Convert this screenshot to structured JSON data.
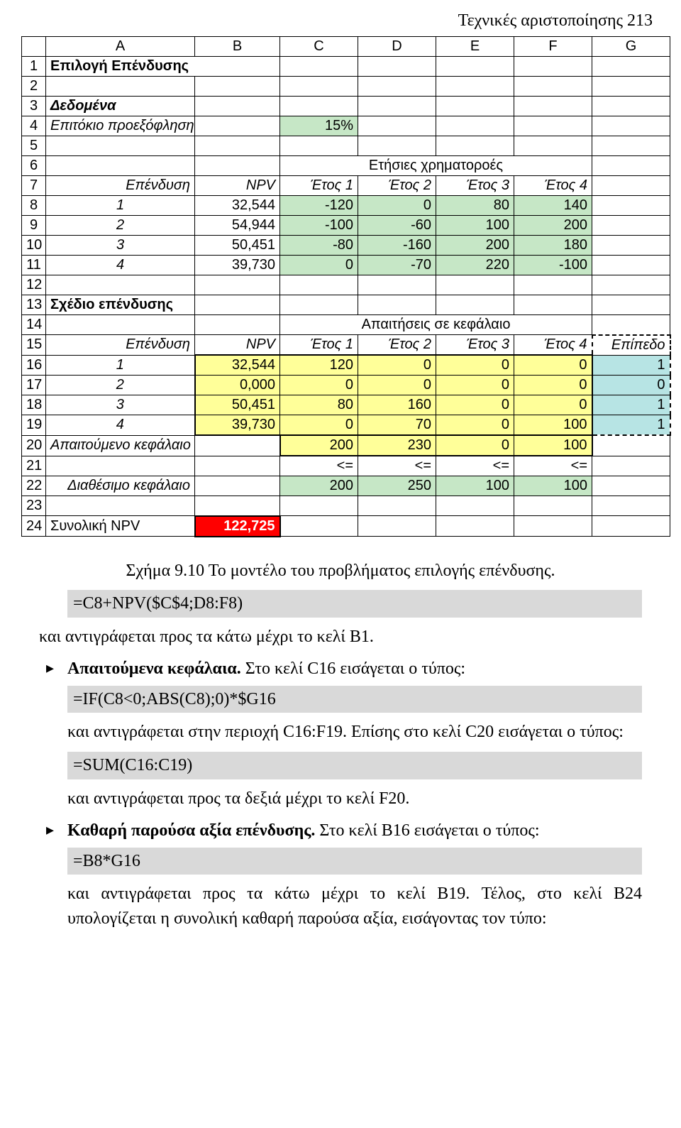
{
  "header": {
    "title": "Τεχνικές αριστοποίησης    213"
  },
  "sheet": {
    "columns": [
      "A",
      "B",
      "C",
      "D",
      "E",
      "F",
      "G"
    ],
    "rows": [
      {
        "n": "1",
        "cells": [
          {
            "t": "Επιλογή Επένδυσης",
            "cls": "bold left",
            "span": 2
          },
          null,
          {
            "t": ""
          },
          {
            "t": ""
          },
          {
            "t": ""
          },
          {
            "t": ""
          },
          {
            "t": ""
          }
        ]
      },
      {
        "n": "2",
        "cells": [
          {
            "t": ""
          },
          {
            "t": ""
          },
          {
            "t": ""
          },
          {
            "t": ""
          },
          {
            "t": ""
          },
          {
            "t": ""
          },
          {
            "t": ""
          }
        ]
      },
      {
        "n": "3",
        "cells": [
          {
            "t": "Δεδομένα",
            "cls": "bold italic left"
          },
          {
            "t": ""
          },
          {
            "t": ""
          },
          {
            "t": ""
          },
          {
            "t": ""
          },
          {
            "t": ""
          },
          {
            "t": ""
          }
        ]
      },
      {
        "n": "4",
        "cells": [
          {
            "t": "Επιτόκιο προεξόφλησης",
            "cls": "italic right"
          },
          {
            "t": ""
          },
          {
            "t": "15%",
            "cls": "right fill-green"
          },
          {
            "t": ""
          },
          {
            "t": ""
          },
          {
            "t": ""
          },
          {
            "t": ""
          }
        ]
      },
      {
        "n": "5",
        "cells": [
          {
            "t": ""
          },
          {
            "t": ""
          },
          {
            "t": ""
          },
          {
            "t": ""
          },
          {
            "t": ""
          },
          {
            "t": ""
          },
          {
            "t": ""
          }
        ]
      },
      {
        "n": "6",
        "cells": [
          {
            "t": ""
          },
          {
            "t": ""
          },
          {
            "t": "Ετήσιες χρηματοροές",
            "cls": "center",
            "span": 4
          },
          null,
          null,
          null,
          {
            "t": ""
          }
        ]
      },
      {
        "n": "7",
        "cells": [
          {
            "t": "Επένδυση",
            "cls": "italic right"
          },
          {
            "t": "NPV",
            "cls": "italic right"
          },
          {
            "t": "Έτος 1",
            "cls": "italic right"
          },
          {
            "t": "Έτος 2",
            "cls": "italic right"
          },
          {
            "t": "Έτος 3",
            "cls": "italic right"
          },
          {
            "t": "Έτος 4",
            "cls": "italic right"
          },
          {
            "t": ""
          }
        ]
      },
      {
        "n": "8",
        "cells": [
          {
            "t": "1",
            "cls": "italic center"
          },
          {
            "t": "32,544",
            "cls": "right"
          },
          {
            "t": "-120",
            "cls": "right fill-green"
          },
          {
            "t": "0",
            "cls": "right fill-green"
          },
          {
            "t": "80",
            "cls": "right fill-green"
          },
          {
            "t": "140",
            "cls": "right fill-green"
          },
          {
            "t": ""
          }
        ]
      },
      {
        "n": "9",
        "cells": [
          {
            "t": "2",
            "cls": "italic center"
          },
          {
            "t": "54,944",
            "cls": "right"
          },
          {
            "t": "-100",
            "cls": "right fill-green"
          },
          {
            "t": "-60",
            "cls": "right fill-green"
          },
          {
            "t": "100",
            "cls": "right fill-green"
          },
          {
            "t": "200",
            "cls": "right fill-green"
          },
          {
            "t": ""
          }
        ]
      },
      {
        "n": "10",
        "cells": [
          {
            "t": "3",
            "cls": "italic center"
          },
          {
            "t": "50,451",
            "cls": "right"
          },
          {
            "t": "-80",
            "cls": "right fill-green"
          },
          {
            "t": "-160",
            "cls": "right fill-green"
          },
          {
            "t": "200",
            "cls": "right fill-green"
          },
          {
            "t": "180",
            "cls": "right fill-green"
          },
          {
            "t": ""
          }
        ]
      },
      {
        "n": "11",
        "cells": [
          {
            "t": "4",
            "cls": "italic center"
          },
          {
            "t": "39,730",
            "cls": "right"
          },
          {
            "t": "0",
            "cls": "right fill-green"
          },
          {
            "t": "-70",
            "cls": "right fill-green"
          },
          {
            "t": "220",
            "cls": "right fill-green"
          },
          {
            "t": "-100",
            "cls": "right fill-green"
          },
          {
            "t": ""
          }
        ]
      },
      {
        "n": "12",
        "cells": [
          {
            "t": ""
          },
          {
            "t": ""
          },
          {
            "t": ""
          },
          {
            "t": ""
          },
          {
            "t": ""
          },
          {
            "t": ""
          },
          {
            "t": ""
          }
        ]
      },
      {
        "n": "13",
        "cells": [
          {
            "t": "Σχέδιο επένδυσης",
            "cls": "bold left"
          },
          {
            "t": ""
          },
          {
            "t": ""
          },
          {
            "t": ""
          },
          {
            "t": ""
          },
          {
            "t": ""
          },
          {
            "t": ""
          }
        ]
      },
      {
        "n": "14",
        "cells": [
          {
            "t": ""
          },
          {
            "t": ""
          },
          {
            "t": "Απαιτήσεις σε κεφάλαιο",
            "cls": "center",
            "span": 4
          },
          null,
          null,
          null,
          {
            "t": ""
          }
        ]
      },
      {
        "n": "15",
        "cells": [
          {
            "t": "Επένδυση",
            "cls": "italic right"
          },
          {
            "t": "NPV",
            "cls": "italic right"
          },
          {
            "t": "Έτος 1",
            "cls": "italic right"
          },
          {
            "t": "Έτος 2",
            "cls": "italic right"
          },
          {
            "t": "Έτος 3",
            "cls": "italic right"
          },
          {
            "t": "Έτος 4",
            "cls": "italic right"
          },
          {
            "t": "Επίπεδο",
            "cls": "italic right dash-left dash-top dash-right"
          }
        ]
      },
      {
        "n": "16",
        "cells": [
          {
            "t": "1",
            "cls": "italic center"
          },
          {
            "t": "32,544",
            "cls": "right fill-yellow thick-top thick-left"
          },
          {
            "t": "120",
            "cls": "right fill-yellow thick-top"
          },
          {
            "t": "0",
            "cls": "right fill-yellow thick-top"
          },
          {
            "t": "0",
            "cls": "right fill-yellow thick-top"
          },
          {
            "t": "0",
            "cls": "right fill-yellow thick-top thick-right"
          },
          {
            "t": "1",
            "cls": "right fill-cyan dash-left dash-right"
          }
        ]
      },
      {
        "n": "17",
        "cells": [
          {
            "t": "2",
            "cls": "italic center"
          },
          {
            "t": "0,000",
            "cls": "right fill-yellow thick-left"
          },
          {
            "t": "0",
            "cls": "right fill-yellow"
          },
          {
            "t": "0",
            "cls": "right fill-yellow"
          },
          {
            "t": "0",
            "cls": "right fill-yellow"
          },
          {
            "t": "0",
            "cls": "right fill-yellow thick-right"
          },
          {
            "t": "0",
            "cls": "right fill-cyan dash-left dash-right"
          }
        ]
      },
      {
        "n": "18",
        "cells": [
          {
            "t": "3",
            "cls": "italic center"
          },
          {
            "t": "50,451",
            "cls": "right fill-yellow thick-left"
          },
          {
            "t": "80",
            "cls": "right fill-yellow"
          },
          {
            "t": "160",
            "cls": "right fill-yellow"
          },
          {
            "t": "0",
            "cls": "right fill-yellow"
          },
          {
            "t": "0",
            "cls": "right fill-yellow thick-right"
          },
          {
            "t": "1",
            "cls": "right fill-cyan dash-left dash-right"
          }
        ]
      },
      {
        "n": "19",
        "cells": [
          {
            "t": "4",
            "cls": "italic center"
          },
          {
            "t": "39,730",
            "cls": "right fill-yellow thick-left thick-bottom"
          },
          {
            "t": "0",
            "cls": "right fill-yellow thick-bottom"
          },
          {
            "t": "70",
            "cls": "right fill-yellow thick-bottom"
          },
          {
            "t": "0",
            "cls": "right fill-yellow thick-bottom"
          },
          {
            "t": "100",
            "cls": "right fill-yellow thick-bottom thick-right"
          },
          {
            "t": "1",
            "cls": "right fill-cyan dash-left dash-right dash-bottom"
          }
        ]
      },
      {
        "n": "20",
        "cells": [
          {
            "t": "Απαιτούμενο κεφάλαιο",
            "cls": "italic right"
          },
          {
            "t": ""
          },
          {
            "t": "200",
            "cls": "right fill-yellow thick-left thick-top thick-bottom"
          },
          {
            "t": "230",
            "cls": "right fill-yellow thick-top thick-bottom"
          },
          {
            "t": "0",
            "cls": "right fill-yellow thick-top thick-bottom"
          },
          {
            "t": "100",
            "cls": "right fill-yellow thick-top thick-bottom thick-right"
          },
          {
            "t": ""
          }
        ]
      },
      {
        "n": "21",
        "cells": [
          {
            "t": ""
          },
          {
            "t": ""
          },
          {
            "t": "<=",
            "cls": "right"
          },
          {
            "t": "<=",
            "cls": "right"
          },
          {
            "t": "<=",
            "cls": "right"
          },
          {
            "t": "<=",
            "cls": "right"
          },
          {
            "t": ""
          }
        ]
      },
      {
        "n": "22",
        "cells": [
          {
            "t": "Διαθέσιμο κεφάλαιο",
            "cls": "italic right"
          },
          {
            "t": ""
          },
          {
            "t": "200",
            "cls": "right fill-green"
          },
          {
            "t": "250",
            "cls": "right fill-green"
          },
          {
            "t": "100",
            "cls": "right fill-green"
          },
          {
            "t": "100",
            "cls": "right fill-green"
          },
          {
            "t": ""
          }
        ]
      },
      {
        "n": "23",
        "cells": [
          {
            "t": ""
          },
          {
            "t": ""
          },
          {
            "t": ""
          },
          {
            "t": ""
          },
          {
            "t": ""
          },
          {
            "t": ""
          },
          {
            "t": ""
          }
        ]
      },
      {
        "n": "24",
        "cells": [
          {
            "t": "Συνολική NPV",
            "cls": "left"
          },
          {
            "t": "122,725",
            "cls": "right fill-red thick-top thick-bottom thick-left thick-right"
          },
          {
            "t": ""
          },
          {
            "t": ""
          },
          {
            "t": ""
          },
          {
            "t": ""
          },
          {
            "t": ""
          }
        ]
      }
    ]
  },
  "caption": "Σχήμα 9.10  Το μοντέλο του προβλήματος επιλογής επένδυσης.",
  "text": {
    "formula1": "=C8+NPV($C$4;D8:F8)",
    "line1": "και αντιγράφεται προς τα κάτω μέχρι το κελί B1.",
    "b1_title": "Απαιτούμενα κεφάλαια.",
    "b1_rest": " Στο κελί C16 εισάγεται ο τύπος:",
    "formula2": "=IF(C8<0;ABS(C8);0)*$G16",
    "b1_after": "και αντιγράφεται στην περιοχή C16:F19. Επίσης στο κελί C20 εισάγεται ο τύπος:",
    "formula3": "=SUM(C16:C19)",
    "b1_after2": "και αντιγράφεται προς τα δεξιά μέχρι το κελί F20.",
    "b2_title": "Καθαρή παρούσα αξία επένδυσης.",
    "b2_rest": " Στο κελί B16 εισάγεται ο τύπος:",
    "formula4": "=B8*G16",
    "b2_after": "και αντιγράφεται προς τα κάτω μέχρι το κελί B19. Τέλος, στο κελί B24 υπολογίζεται η συνολική καθαρή παρούσα αξία, εισάγοντας τον τύπο:"
  }
}
